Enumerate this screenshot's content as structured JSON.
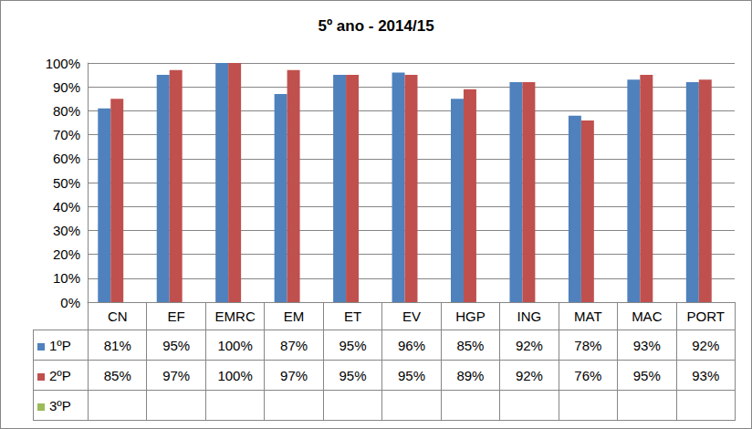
{
  "chart_data": {
    "type": "bar",
    "title": "5º ano - 2014/15",
    "categories": [
      "CN",
      "EF",
      "EMRC",
      "EM",
      "ET",
      "EV",
      "HGP",
      "ING",
      "MAT",
      "MAC",
      "PORT"
    ],
    "series": [
      {
        "name": "1ºP",
        "color": "#4f81bd",
        "values": [
          81,
          95,
          100,
          87,
          95,
          96,
          85,
          92,
          78,
          93,
          92
        ],
        "value_labels": [
          "81%",
          "95%",
          "100%",
          "87%",
          "95%",
          "96%",
          "85%",
          "92%",
          "78%",
          "93%",
          "92%"
        ]
      },
      {
        "name": "2ºP",
        "color": "#c0504d",
        "values": [
          85,
          97,
          100,
          97,
          95,
          95,
          89,
          92,
          76,
          95,
          93
        ],
        "value_labels": [
          "85%",
          "97%",
          "100%",
          "97%",
          "95%",
          "95%",
          "89%",
          "92%",
          "76%",
          "95%",
          "93%"
        ]
      },
      {
        "name": "3ºP",
        "color": "#9bbb59",
        "values": [
          null,
          null,
          null,
          null,
          null,
          null,
          null,
          null,
          null,
          null,
          null
        ],
        "value_labels": [
          null,
          null,
          null,
          null,
          null,
          null,
          null,
          null,
          null,
          null,
          null
        ]
      }
    ],
    "ylim": [
      0,
      100
    ],
    "yticks": [
      {
        "value": 0,
        "label": "0%"
      },
      {
        "value": 10,
        "label": "10%"
      },
      {
        "value": 20,
        "label": "20%"
      },
      {
        "value": 30,
        "label": "30%"
      },
      {
        "value": 40,
        "label": "40%"
      },
      {
        "value": 50,
        "label": "50%"
      },
      {
        "value": 60,
        "label": "60%"
      },
      {
        "value": 70,
        "label": "70%"
      },
      {
        "value": 80,
        "label": "80%"
      },
      {
        "value": 90,
        "label": "90%"
      },
      {
        "value": 100,
        "label": "100%"
      }
    ],
    "grid": true
  }
}
